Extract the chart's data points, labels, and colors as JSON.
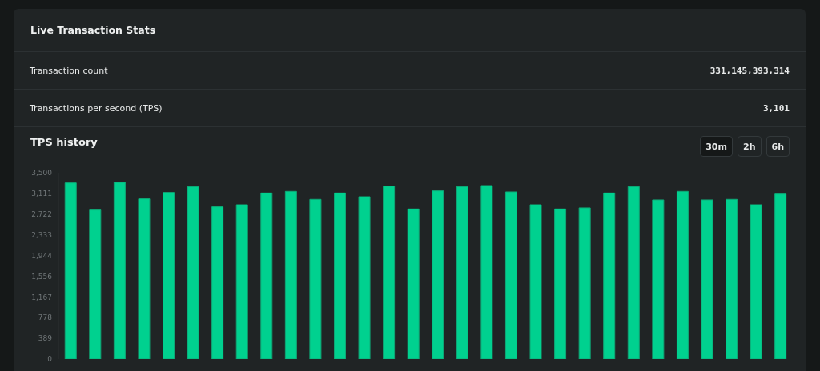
{
  "chart_data": {
    "type": "bar",
    "title": "TPS history",
    "annotations": [
      "Live Transaction Stats",
      "Transaction count",
      "331,145,393,314",
      "Transactions per second (TPS)",
      "3,101",
      "30m",
      "2h",
      "6h"
    ],
    "categories": [
      null,
      null,
      null,
      null,
      null,
      null,
      null,
      null,
      null,
      null,
      null,
      null,
      null,
      null,
      null,
      null,
      null,
      null,
      null,
      null,
      null,
      null,
      null,
      null,
      null,
      null,
      null,
      null,
      null,
      null
    ],
    "values": [
      3310,
      2800,
      3320,
      3010,
      3130,
      3240,
      2860,
      2900,
      3120,
      3150,
      3000,
      3120,
      3050,
      3250,
      2820,
      3160,
      3240,
      3260,
      3140,
      2900,
      2820,
      2840,
      3120,
      3240,
      2990,
      3150,
      2990,
      3000,
      2900,
      3100
    ],
    "color": "#00d18f",
    "ylim": [
      0,
      3500
    ],
    "yticks": [
      0,
      {
        "value": 389,
        "label": "389"
      },
      {
        "value": 778,
        "label": "778"
      },
      {
        "value": 1167,
        "label": "1,167"
      },
      {
        "value": 1556,
        "label": "1,556"
      },
      {
        "value": 1944,
        "label": "1,944"
      },
      {
        "value": 2333,
        "label": "2,333"
      },
      {
        "value": 2722,
        "label": "2,722"
      },
      {
        "value": 3111,
        "label": "3,111"
      },
      {
        "value": 3500,
        "label": "3,500"
      }
    ],
    "tick_labels": "y"
  }
}
